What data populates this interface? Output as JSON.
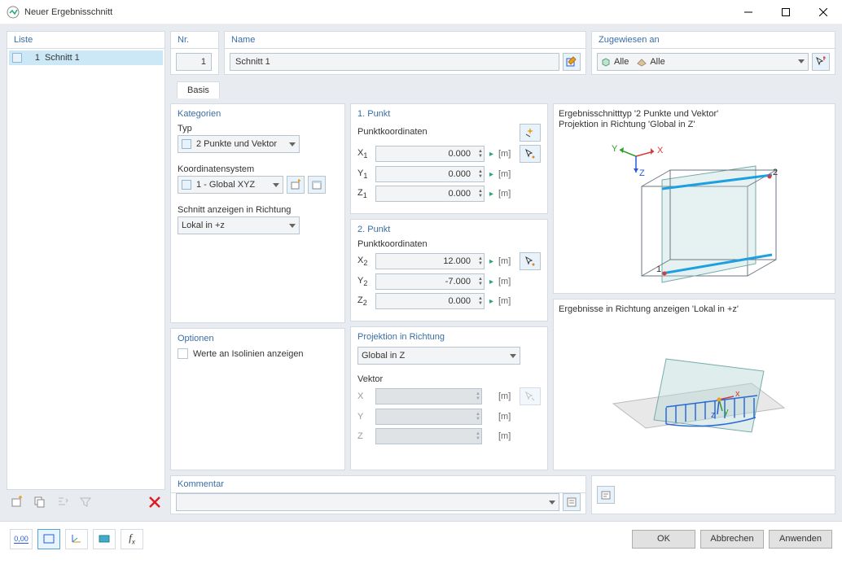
{
  "window": {
    "title": "Neuer Ergebnisschnitt"
  },
  "liste": {
    "title": "Liste",
    "items": [
      {
        "num": "1",
        "name": "Schnitt 1",
        "selected": true
      }
    ]
  },
  "nr": {
    "label": "Nr.",
    "value": "1"
  },
  "name": {
    "label": "Name",
    "value": "Schnitt 1"
  },
  "assigned": {
    "label": "Zugewiesen an",
    "value1": "Alle",
    "value2": "Alle"
  },
  "tabs": {
    "basis": "Basis"
  },
  "kategorien": {
    "title": "Kategorien",
    "typ_label": "Typ",
    "typ_value": "2 Punkte und Vektor",
    "coord_label": "Koordinatensystem",
    "coord_value": "1 - Global XYZ",
    "dir_label": "Schnitt anzeigen in Richtung",
    "dir_value": "Lokal in +z"
  },
  "punkt1": {
    "title": "1. Punkt",
    "coord_label": "Punktkoordinaten",
    "x_label": "X",
    "x_sub": "1",
    "x_val": "0.000",
    "y_label": "Y",
    "y_sub": "1",
    "y_val": "0.000",
    "z_label": "Z",
    "z_sub": "1",
    "z_val": "0.000",
    "unit": "[m]"
  },
  "punkt2": {
    "title": "2. Punkt",
    "coord_label": "Punktkoordinaten",
    "x_label": "X",
    "x_sub": "2",
    "x_val": "12.000",
    "y_label": "Y",
    "y_sub": "2",
    "y_val": "-7.000",
    "z_label": "Z",
    "z_sub": "2",
    "z_val": "0.000",
    "unit": "[m]"
  },
  "optionen": {
    "title": "Optionen",
    "iso_label": "Werte an Isolinien anzeigen"
  },
  "projektion": {
    "title": "Projektion in Richtung",
    "value": "Global in Z",
    "vektor_label": "Vektor",
    "x": "X",
    "y": "Y",
    "z": "Z",
    "unit": "[m]"
  },
  "kommentar": {
    "title": "Kommentar"
  },
  "preview1": {
    "line1": "Ergebnisschnitttyp '2 Punkte und Vektor'",
    "line2": "Projektion in Richtung 'Global in Z'"
  },
  "preview2": {
    "line1": "Ergebnisse in Richtung anzeigen 'Lokal in +z'"
  },
  "axis": {
    "x": "X",
    "y": "Y",
    "z": "Z"
  },
  "buttons": {
    "ok": "OK",
    "cancel": "Abbrechen",
    "apply": "Anwenden"
  },
  "colors": {
    "cube_stroke": "#6b7680",
    "cube_fill": "#b8d8d8",
    "cube_fill_opacity": 0.35,
    "section_line": "#1ea0e0",
    "axis_x": "#d83a3a",
    "axis_y": "#2aa02a",
    "axis_z": "#2a5ad8",
    "point": "#d83a3a"
  }
}
